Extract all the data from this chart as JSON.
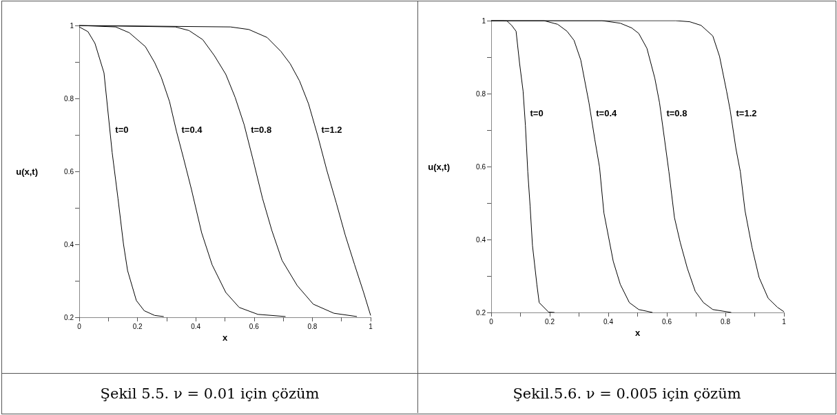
{
  "chart_data": [
    {
      "type": "line",
      "title": "Şekil 5.5. ν = 0.01 için çözüm",
      "xlabel": "x",
      "ylabel": "u(x,t)",
      "xlim": [
        0,
        1
      ],
      "ylim": [
        0.2,
        1
      ],
      "xticks": [
        0,
        {
          "value": 0.1,
          "label": null
        },
        0.2,
        {
          "value": 0.3,
          "label": null
        },
        0.4,
        {
          "value": 0.5,
          "label": null
        },
        0.6,
        {
          "value": 0.7,
          "label": null
        },
        0.8,
        {
          "value": 0.9,
          "label": null
        },
        1
      ],
      "yticks": [
        0.2,
        {
          "value": 0.3,
          "label": null
        },
        0.4,
        {
          "value": 0.5,
          "label": null
        },
        0.6,
        {
          "value": 0.7,
          "label": null
        },
        0.8,
        {
          "value": 0.9,
          "label": null
        },
        1
      ],
      "grid": false,
      "legend": false,
      "marker": "none",
      "line_style": "solid",
      "series": [
        {
          "name": "t=0",
          "color": "#000000",
          "x": [
            0,
            0.03,
            0.054,
            0.085,
            0.113,
            0.133,
            0.152,
            0.166,
            0.196,
            0.223,
            0.259,
            0.29
          ],
          "values": [
            0.996,
            0.983,
            0.951,
            0.87,
            0.652,
            0.526,
            0.4,
            0.328,
            0.246,
            0.218,
            0.205,
            0.202
          ]
        },
        {
          "name": "t=0.4",
          "color": "#000000",
          "x": [
            0,
            0.125,
            0.172,
            0.227,
            0.259,
            0.282,
            0.31,
            0.334,
            0.358,
            0.385,
            0.42,
            0.456,
            0.503,
            0.549,
            0.613,
            0.708
          ],
          "values": [
            1,
            0.996,
            0.98,
            0.942,
            0.898,
            0.857,
            0.791,
            0.709,
            0.636,
            0.551,
            0.432,
            0.344,
            0.268,
            0.227,
            0.208,
            0.202
          ]
        },
        {
          "name": "t=0.8",
          "color": "#000000",
          "x": [
            0,
            0.33,
            0.377,
            0.424,
            0.464,
            0.503,
            0.535,
            0.566,
            0.598,
            0.629,
            0.661,
            0.696,
            0.748,
            0.803,
            0.874,
            0.953
          ],
          "values": [
            1,
            0.996,
            0.986,
            0.961,
            0.917,
            0.866,
            0.803,
            0.728,
            0.627,
            0.526,
            0.438,
            0.356,
            0.287,
            0.236,
            0.211,
            0.202
          ]
        },
        {
          "name": "t=1.2",
          "color": "#000000",
          "x": [
            0,
            0.519,
            0.582,
            0.645,
            0.692,
            0.724,
            0.756,
            0.787,
            0.819,
            0.85,
            0.882,
            0.913,
            0.945,
            0.976,
            1
          ],
          "values": [
            1,
            0.996,
            0.989,
            0.967,
            0.929,
            0.895,
            0.848,
            0.785,
            0.696,
            0.602,
            0.514,
            0.425,
            0.344,
            0.268,
            0.205
          ]
        }
      ]
    },
    {
      "type": "line",
      "title": "Şekil.5.6. ν = 0.005 için çözüm",
      "xlabel": "x",
      "ylabel": "u(x,t)",
      "xlim": [
        0,
        1
      ],
      "ylim": [
        0.2,
        1
      ],
      "xticks": [
        0,
        {
          "value": 0.1,
          "label": null
        },
        0.2,
        {
          "value": 0.3,
          "label": null
        },
        0.4,
        {
          "value": 0.5,
          "label": null
        },
        0.6,
        {
          "value": 0.7,
          "label": null
        },
        0.8,
        {
          "value": 0.9,
          "label": null
        },
        1
      ],
      "yticks": [
        0.2,
        {
          "value": 0.3,
          "label": null
        },
        0.4,
        {
          "value": 0.5,
          "label": null
        },
        0.6,
        {
          "value": 0.7,
          "label": null
        },
        0.8,
        {
          "value": 0.9,
          "label": null
        },
        1
      ],
      "grid": false,
      "legend": false,
      "marker": "none",
      "line_style": "solid",
      "series": [
        {
          "name": "t=0",
          "color": "#000000",
          "x": [
            0,
            0.038,
            0.054,
            0.07,
            0.085,
            0.097,
            0.109,
            0.117,
            0.125,
            0.133,
            0.141,
            0.156,
            0.164,
            0.196,
            0.216
          ],
          "values": [
            1,
            1,
            0.999,
            0.987,
            0.971,
            0.883,
            0.807,
            0.712,
            0.586,
            0.491,
            0.384,
            0.277,
            0.227,
            0.201,
            0.2
          ]
        },
        {
          "name": "t=0.4",
          "color": "#000000",
          "x": [
            0,
            0.18,
            0.227,
            0.259,
            0.283,
            0.306,
            0.334,
            0.354,
            0.37,
            0.385,
            0.417,
            0.441,
            0.472,
            0.504,
            0.551
          ],
          "values": [
            1,
            1,
            0.99,
            0.971,
            0.946,
            0.892,
            0.775,
            0.674,
            0.599,
            0.473,
            0.34,
            0.277,
            0.227,
            0.208,
            0.2
          ]
        },
        {
          "name": "t=0.8",
          "color": "#000000",
          "x": [
            0,
            0.378,
            0.441,
            0.48,
            0.504,
            0.532,
            0.559,
            0.575,
            0.591,
            0.607,
            0.626,
            0.646,
            0.67,
            0.697,
            0.725,
            0.757,
            0.82
          ],
          "values": [
            1,
            1,
            0.993,
            0.98,
            0.965,
            0.924,
            0.842,
            0.775,
            0.681,
            0.586,
            0.46,
            0.391,
            0.321,
            0.258,
            0.227,
            0.208,
            0.2
          ]
        },
        {
          "name": "t=1.2",
          "color": "#000000",
          "x": [
            0,
            0.63,
            0.678,
            0.717,
            0.757,
            0.78,
            0.804,
            0.816,
            0.836,
            0.851,
            0.867,
            0.891,
            0.915,
            0.946,
            0.978,
            1
          ],
          "values": [
            1,
            1,
            0.997,
            0.987,
            0.958,
            0.902,
            0.807,
            0.756,
            0.649,
            0.586,
            0.479,
            0.378,
            0.296,
            0.239,
            0.214,
            0.202
          ]
        }
      ]
    }
  ]
}
